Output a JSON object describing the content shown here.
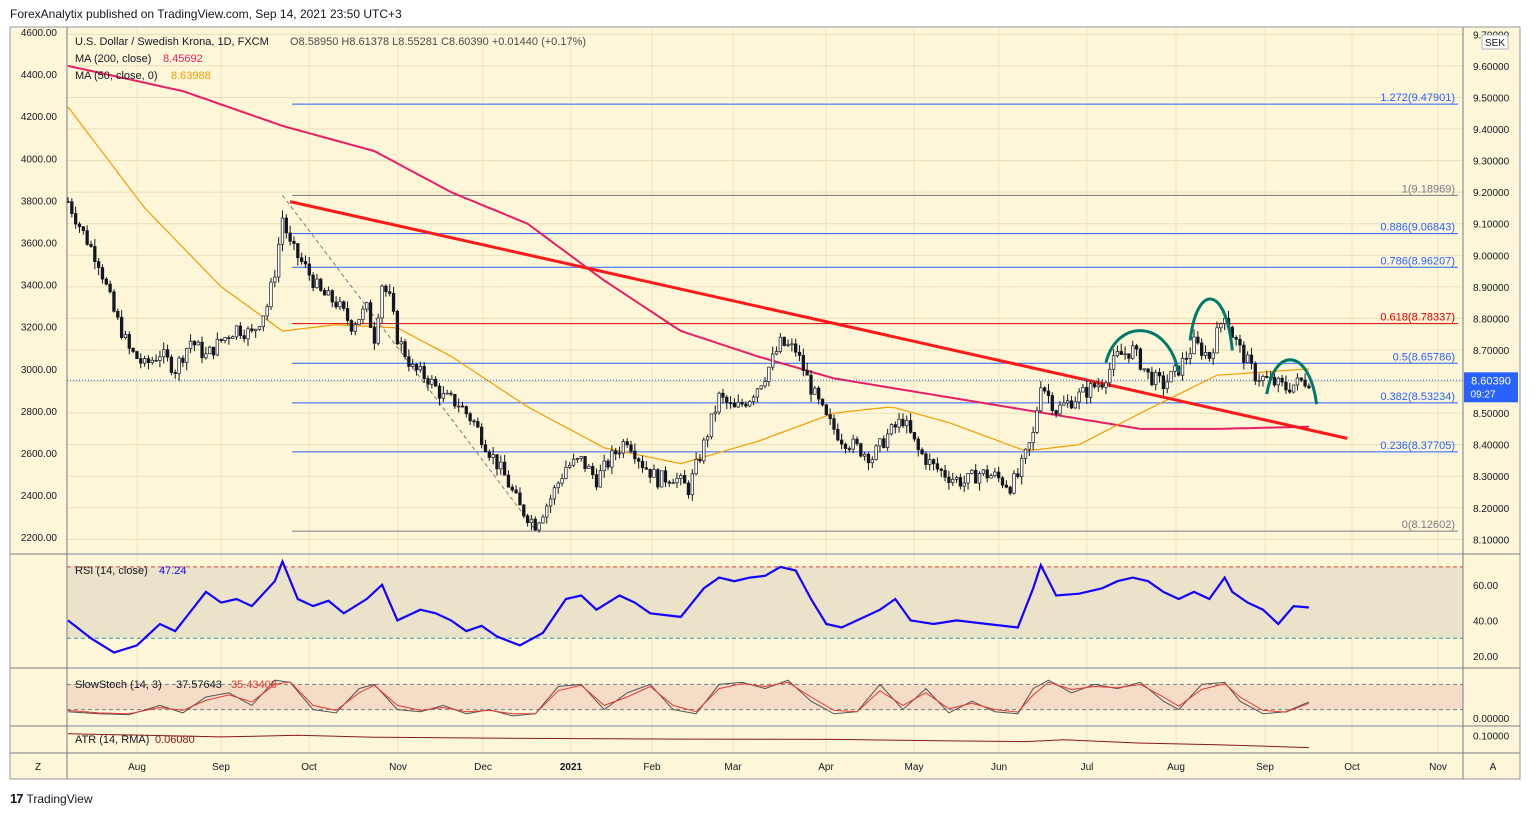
{
  "header": {
    "published": "ForexAnalytix published on TradingView.com, Sep 14, 2021 23:50 UTC+3"
  },
  "footer": {
    "logo_label": "TradingView"
  },
  "legend": {
    "symbol": "U.S. Dollar / Swedish Krona, 1D, FXCM",
    "ohlc": "O8.58950  H8.61378  L8.55281  C8.60390  +0.01440 (+0.17%)",
    "ma200_label": "MA (200, close)",
    "ma200_value": "8.45692",
    "ma50_label": "MA (50, close, 0)",
    "ma50_value": "8.63988"
  },
  "currency_label": "SEK",
  "price_badge": {
    "price": "8.60390",
    "countdown": "09:27"
  },
  "colors": {
    "background": "#fdf6d8",
    "candle": "#131722",
    "ma200": "#e91e63",
    "ma50": "#f59d00",
    "trendline": "#ff1a1a",
    "fib_line": "#2962ff",
    "fib_red": "#e00000",
    "pattern": "#00796b",
    "rsi": "#1400ff",
    "stoch_k": "#555555",
    "stoch_d": "#e53935",
    "atr": "#8b1a1a"
  },
  "chart_data": {
    "type": "line",
    "title": "U.S. Dollar / Swedish Krona, 1D, FXCM",
    "x_axis_labels": [
      "Aug",
      "Sep",
      "Oct",
      "Nov",
      "Dec",
      "2021",
      "Feb",
      "Mar",
      "Apr",
      "May",
      "Jun",
      "Jul",
      "Aug",
      "Sep",
      "Oct",
      "Nov"
    ],
    "left_axis_ticks": [
      "4600.00",
      "4400.00",
      "4200.00",
      "4000.00",
      "3800.00",
      "3600.00",
      "3400.00",
      "3200.00",
      "3000.00",
      "2800.00",
      "2600.00",
      "2400.00",
      "2200.00"
    ],
    "right_axis_ticks": [
      "9.70000",
      "9.60000",
      "9.50000",
      "9.40000",
      "9.30000",
      "9.20000",
      "9.10000",
      "9.00000",
      "8.90000",
      "8.80000",
      "8.70000",
      "8.60000",
      "8.50000",
      "8.40000",
      "8.30000",
      "8.20000",
      "8.10000"
    ],
    "price_ylim": [
      8.06,
      9.72
    ],
    "last_close": 8.6039,
    "price_path": [
      [
        0,
        9.17
      ],
      [
        4,
        9.07
      ],
      [
        8,
        8.98
      ],
      [
        12,
        8.82
      ],
      [
        16,
        8.7
      ],
      [
        20,
        8.65
      ],
      [
        24,
        8.69
      ],
      [
        28,
        8.64
      ],
      [
        32,
        8.73
      ],
      [
        36,
        8.68
      ],
      [
        40,
        8.73
      ],
      [
        44,
        8.77
      ],
      [
        48,
        8.75
      ],
      [
        52,
        8.84
      ],
      [
        54,
        8.95
      ],
      [
        56,
        9.12
      ],
      [
        58,
        9.03
      ],
      [
        62,
        8.96
      ],
      [
        66,
        8.88
      ],
      [
        70,
        8.85
      ],
      [
        74,
        8.78
      ],
      [
        78,
        8.83
      ],
      [
        80,
        8.74
      ],
      [
        82,
        8.91
      ],
      [
        84,
        8.86
      ],
      [
        86,
        8.74
      ],
      [
        90,
        8.64
      ],
      [
        94,
        8.61
      ],
      [
        98,
        8.55
      ],
      [
        102,
        8.53
      ],
      [
        106,
        8.47
      ],
      [
        110,
        8.38
      ],
      [
        114,
        8.3
      ],
      [
        118,
        8.2
      ],
      [
        122,
        8.15
      ],
      [
        126,
        8.23
      ],
      [
        130,
        8.33
      ],
      [
        134,
        8.35
      ],
      [
        138,
        8.29
      ],
      [
        142,
        8.36
      ],
      [
        146,
        8.42
      ],
      [
        150,
        8.34
      ],
      [
        154,
        8.29
      ],
      [
        158,
        8.3
      ],
      [
        162,
        8.26
      ],
      [
        166,
        8.4
      ],
      [
        170,
        8.55
      ],
      [
        174,
        8.51
      ],
      [
        178,
        8.55
      ],
      [
        182,
        8.62
      ],
      [
        186,
        8.72
      ],
      [
        190,
        8.7
      ],
      [
        194,
        8.58
      ],
      [
        198,
        8.48
      ],
      [
        202,
        8.42
      ],
      [
        206,
        8.39
      ],
      [
        210,
        8.36
      ],
      [
        214,
        8.43
      ],
      [
        218,
        8.48
      ],
      [
        222,
        8.38
      ],
      [
        226,
        8.33
      ],
      [
        230,
        8.3
      ],
      [
        234,
        8.28
      ],
      [
        238,
        8.31
      ],
      [
        242,
        8.3
      ],
      [
        246,
        8.27
      ],
      [
        248,
        8.3
      ],
      [
        252,
        8.43
      ],
      [
        254,
        8.6
      ],
      [
        258,
        8.51
      ],
      [
        262,
        8.54
      ],
      [
        266,
        8.57
      ],
      [
        270,
        8.6
      ],
      [
        274,
        8.68
      ],
      [
        278,
        8.7
      ],
      [
        282,
        8.62
      ],
      [
        286,
        8.59
      ],
      [
        290,
        8.64
      ],
      [
        294,
        8.72
      ],
      [
        298,
        8.68
      ],
      [
        302,
        8.82
      ],
      [
        304,
        8.75
      ],
      [
        306,
        8.7
      ],
      [
        310,
        8.62
      ],
      [
        314,
        8.6
      ],
      [
        318,
        8.58
      ],
      [
        322,
        8.6
      ],
      [
        324,
        8.6039
      ]
    ],
    "series": [
      {
        "name": "MA (200, close)",
        "values": [
          [
            0,
            9.6
          ],
          [
            30,
            9.52
          ],
          [
            56,
            9.41
          ],
          [
            80,
            9.33
          ],
          [
            100,
            9.2
          ],
          [
            120,
            9.1
          ],
          [
            140,
            8.92
          ],
          [
            160,
            8.76
          ],
          [
            180,
            8.68
          ],
          [
            200,
            8.61
          ],
          [
            220,
            8.57
          ],
          [
            240,
            8.53
          ],
          [
            260,
            8.49
          ],
          [
            280,
            8.45
          ],
          [
            300,
            8.45
          ],
          [
            324,
            8.45692
          ]
        ]
      },
      {
        "name": "MA (50, close, 0)",
        "values": [
          [
            0,
            9.47
          ],
          [
            20,
            9.15
          ],
          [
            40,
            8.9
          ],
          [
            56,
            8.76
          ],
          [
            70,
            8.78
          ],
          [
            86,
            8.77
          ],
          [
            100,
            8.68
          ],
          [
            120,
            8.52
          ],
          [
            140,
            8.39
          ],
          [
            160,
            8.34
          ],
          [
            180,
            8.41
          ],
          [
            200,
            8.5
          ],
          [
            215,
            8.52
          ],
          [
            230,
            8.47
          ],
          [
            250,
            8.38
          ],
          [
            264,
            8.4
          ],
          [
            280,
            8.5
          ],
          [
            300,
            8.62
          ],
          [
            324,
            8.63988
          ]
        ]
      }
    ],
    "fibonacci_levels": [
      {
        "label": "1.272(9.47901)",
        "value": 9.47901
      },
      {
        "label": "1(9.18969)",
        "value": 9.18969
      },
      {
        "label": "0.886(9.06843)",
        "value": 9.06843
      },
      {
        "label": "0.786(8.96207)",
        "value": 8.96207
      },
      {
        "label": "0.618(8.78337)",
        "value": 8.78337
      },
      {
        "label": "0.5(8.65786)",
        "value": 8.65786
      },
      {
        "label": "0.382(8.53234)",
        "value": 8.53234
      },
      {
        "label": "0.236(8.37705)",
        "value": 8.37705
      },
      {
        "label": "0(8.12602)",
        "value": 8.12602
      }
    ],
    "trendline": {
      "from": [
        58,
        9.17
      ],
      "to": [
        334,
        8.42
      ]
    },
    "fib_swing_line": {
      "from": [
        56,
        9.19
      ],
      "to": [
        122,
        8.13
      ]
    },
    "rsi": {
      "label": "RSI (14, close)",
      "value": "47.24",
      "ylim": [
        15,
        75
      ],
      "upper": 70,
      "lower": 30,
      "ticks": [
        "60.00",
        "40.00",
        "20.00"
      ],
      "values": [
        [
          0,
          40
        ],
        [
          6,
          30
        ],
        [
          12,
          22
        ],
        [
          18,
          26
        ],
        [
          24,
          38
        ],
        [
          28,
          34
        ],
        [
          32,
          45
        ],
        [
          36,
          56
        ],
        [
          40,
          50
        ],
        [
          44,
          52
        ],
        [
          48,
          48
        ],
        [
          54,
          62
        ],
        [
          56,
          73
        ],
        [
          60,
          52
        ],
        [
          64,
          48
        ],
        [
          68,
          51
        ],
        [
          72,
          44
        ],
        [
          78,
          52
        ],
        [
          82,
          60
        ],
        [
          86,
          40
        ],
        [
          92,
          46
        ],
        [
          96,
          44
        ],
        [
          100,
          40
        ],
        [
          104,
          34
        ],
        [
          108,
          37
        ],
        [
          112,
          31
        ],
        [
          118,
          26
        ],
        [
          124,
          33
        ],
        [
          130,
          52
        ],
        [
          134,
          54
        ],
        [
          138,
          46
        ],
        [
          144,
          54
        ],
        [
          148,
          50
        ],
        [
          152,
          44
        ],
        [
          160,
          42
        ],
        [
          166,
          58
        ],
        [
          170,
          64
        ],
        [
          174,
          62
        ],
        [
          178,
          64
        ],
        [
          182,
          65
        ],
        [
          186,
          70
        ],
        [
          190,
          68
        ],
        [
          194,
          52
        ],
        [
          198,
          38
        ],
        [
          202,
          36
        ],
        [
          208,
          42
        ],
        [
          212,
          46
        ],
        [
          216,
          52
        ],
        [
          220,
          40
        ],
        [
          226,
          38
        ],
        [
          232,
          40
        ],
        [
          240,
          38
        ],
        [
          248,
          36
        ],
        [
          252,
          58
        ],
        [
          254,
          71
        ],
        [
          258,
          54
        ],
        [
          264,
          55
        ],
        [
          270,
          58
        ],
        [
          274,
          62
        ],
        [
          278,
          64
        ],
        [
          282,
          62
        ],
        [
          286,
          56
        ],
        [
          290,
          52
        ],
        [
          294,
          56
        ],
        [
          298,
          52
        ],
        [
          302,
          64
        ],
        [
          304,
          56
        ],
        [
          308,
          50
        ],
        [
          312,
          46
        ],
        [
          316,
          38
        ],
        [
          320,
          48
        ],
        [
          324,
          47.24
        ]
      ]
    },
    "slow_stoch": {
      "label": "SlowStoch (14, 3)",
      "k_value": "37.57643",
      "d_value": "35.43408",
      "ylim": [
        -12,
        112
      ],
      "upper": 80,
      "lower": 20,
      "ticks": [
        "0.00000"
      ],
      "k_values": [
        [
          0,
          15
        ],
        [
          8,
          10
        ],
        [
          16,
          8
        ],
        [
          24,
          30
        ],
        [
          30,
          12
        ],
        [
          36,
          50
        ],
        [
          42,
          60
        ],
        [
          48,
          30
        ],
        [
          54,
          90
        ],
        [
          58,
          85
        ],
        [
          64,
          20
        ],
        [
          70,
          12
        ],
        [
          76,
          70
        ],
        [
          80,
          80
        ],
        [
          86,
          20
        ],
        [
          92,
          15
        ],
        [
          98,
          30
        ],
        [
          104,
          10
        ],
        [
          110,
          20
        ],
        [
          116,
          5
        ],
        [
          122,
          10
        ],
        [
          128,
          75
        ],
        [
          134,
          80
        ],
        [
          140,
          20
        ],
        [
          146,
          60
        ],
        [
          152,
          80
        ],
        [
          158,
          20
        ],
        [
          164,
          10
        ],
        [
          170,
          80
        ],
        [
          176,
          85
        ],
        [
          182,
          70
        ],
        [
          188,
          90
        ],
        [
          194,
          40
        ],
        [
          200,
          10
        ],
        [
          206,
          15
        ],
        [
          212,
          80
        ],
        [
          218,
          20
        ],
        [
          224,
          70
        ],
        [
          230,
          12
        ],
        [
          236,
          40
        ],
        [
          242,
          15
        ],
        [
          248,
          10
        ],
        [
          252,
          70
        ],
        [
          256,
          90
        ],
        [
          262,
          60
        ],
        [
          268,
          80
        ],
        [
          274,
          70
        ],
        [
          280,
          85
        ],
        [
          286,
          40
        ],
        [
          290,
          20
        ],
        [
          296,
          80
        ],
        [
          302,
          85
        ],
        [
          306,
          40
        ],
        [
          312,
          10
        ],
        [
          318,
          15
        ],
        [
          324,
          38
        ]
      ],
      "d_values": [
        [
          0,
          18
        ],
        [
          8,
          12
        ],
        [
          16,
          10
        ],
        [
          24,
          25
        ],
        [
          30,
          18
        ],
        [
          36,
          42
        ],
        [
          42,
          55
        ],
        [
          48,
          38
        ],
        [
          54,
          80
        ],
        [
          58,
          86
        ],
        [
          64,
          30
        ],
        [
          70,
          18
        ],
        [
          76,
          60
        ],
        [
          80,
          78
        ],
        [
          86,
          30
        ],
        [
          92,
          18
        ],
        [
          98,
          25
        ],
        [
          104,
          15
        ],
        [
          110,
          18
        ],
        [
          116,
          10
        ],
        [
          122,
          10
        ],
        [
          128,
          65
        ],
        [
          134,
          78
        ],
        [
          140,
          30
        ],
        [
          146,
          50
        ],
        [
          152,
          75
        ],
        [
          158,
          30
        ],
        [
          164,
          15
        ],
        [
          170,
          70
        ],
        [
          176,
          82
        ],
        [
          182,
          75
        ],
        [
          188,
          85
        ],
        [
          194,
          50
        ],
        [
          200,
          18
        ],
        [
          206,
          15
        ],
        [
          212,
          65
        ],
        [
          218,
          30
        ],
        [
          224,
          60
        ],
        [
          230,
          22
        ],
        [
          236,
          35
        ],
        [
          242,
          20
        ],
        [
          248,
          14
        ],
        [
          252,
          55
        ],
        [
          256,
          85
        ],
        [
          262,
          68
        ],
        [
          268,
          75
        ],
        [
          274,
          72
        ],
        [
          280,
          80
        ],
        [
          286,
          50
        ],
        [
          290,
          28
        ],
        [
          296,
          68
        ],
        [
          302,
          82
        ],
        [
          306,
          50
        ],
        [
          312,
          18
        ],
        [
          318,
          14
        ],
        [
          324,
          35
        ]
      ]
    },
    "atr": {
      "label": "ATR (14, RMA)",
      "value": "0.06080",
      "ylim": [
        0.05,
        0.12
      ],
      "ticks": [
        "0.10000"
      ],
      "values": [
        [
          0,
          0.105
        ],
        [
          40,
          0.095
        ],
        [
          60,
          0.1
        ],
        [
          80,
          0.094
        ],
        [
          120,
          0.09
        ],
        [
          160,
          0.088
        ],
        [
          200,
          0.087
        ],
        [
          230,
          0.082
        ],
        [
          250,
          0.08
        ],
        [
          260,
          0.086
        ],
        [
          280,
          0.075
        ],
        [
          300,
          0.07
        ],
        [
          324,
          0.0608
        ]
      ]
    },
    "axis_buttons": {
      "left": "Z",
      "right": "A"
    }
  }
}
